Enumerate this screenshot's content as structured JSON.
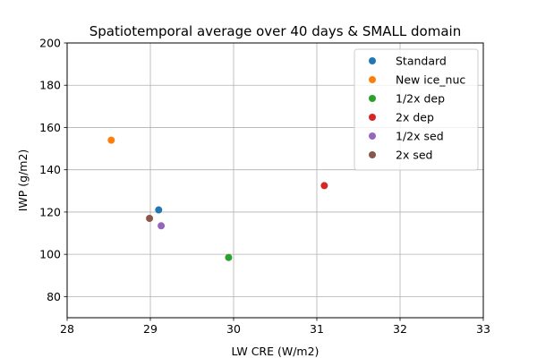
{
  "chart_data": {
    "type": "scatter",
    "title": "Spatiotemporal average over 40 days & SMALL domain",
    "xlabel": "LW CRE (W/m2)",
    "ylabel": "IWP (g/m2)",
    "xlim": [
      28,
      33
    ],
    "ylim": [
      70,
      200
    ],
    "xticks": [
      28,
      29,
      30,
      31,
      32,
      33
    ],
    "yticks": [
      80,
      100,
      120,
      140,
      160,
      180,
      200
    ],
    "grid": true,
    "legend_position": "top-right",
    "series": [
      {
        "name": "Standard",
        "color": "#1f77b4",
        "x": 29.1,
        "y": 121.0
      },
      {
        "name": "New ice_nuc",
        "color": "#ff7f0e",
        "x": 28.53,
        "y": 154.0
      },
      {
        "name": "1/2x dep",
        "color": "#2ca02c",
        "x": 29.94,
        "y": 98.5
      },
      {
        "name": "2x dep",
        "color": "#d62728",
        "x": 31.09,
        "y": 132.5
      },
      {
        "name": "1/2x sed",
        "color": "#9467bd",
        "x": 29.13,
        "y": 113.5
      },
      {
        "name": "2x sed",
        "color": "#8c564b",
        "x": 28.99,
        "y": 117.0
      }
    ]
  }
}
